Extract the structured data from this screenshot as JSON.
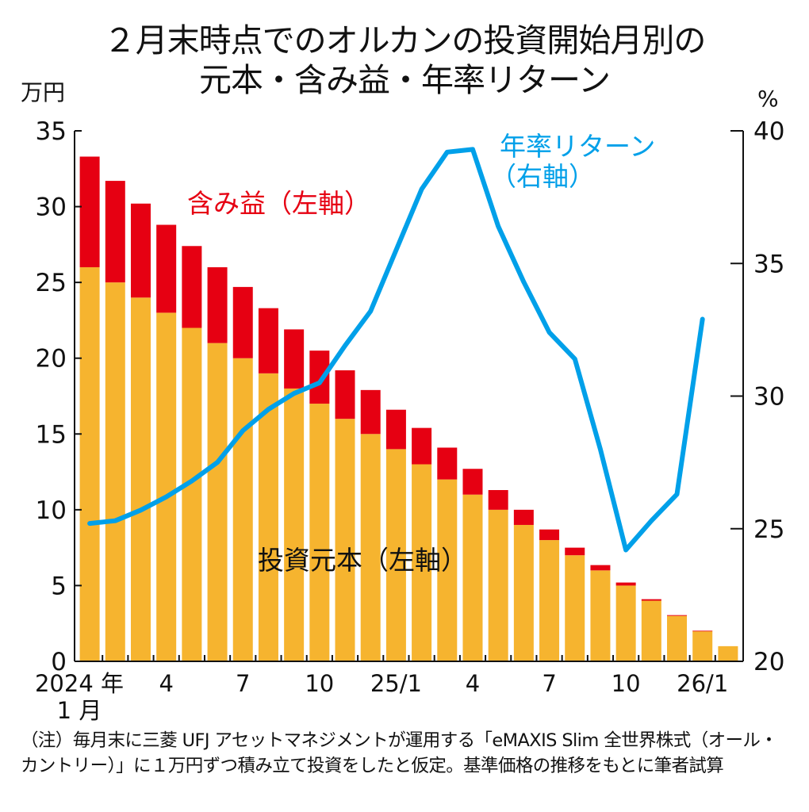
{
  "title": {
    "line1": "２月末時点でのオルカンの投資開始月別の",
    "line2": "元本・含み益・年率リターン"
  },
  "units": {
    "left": "万円",
    "right": "%"
  },
  "annotations": {
    "gain": "含み益（左軸）",
    "principal": "投資元本（左軸）",
    "return_line1": "年率リターン",
    "return_line2": "（右軸）"
  },
  "colors": {
    "principal": "#F6B42F",
    "gain": "#E60012",
    "return": "#00A0E9",
    "axis": "#111111"
  },
  "note": "（注）毎月末に三菱 UFJ アセットマネジメントが運用する「eMAXIS Slim 全世界株式（オール・カントリー）」に１万円ずつ積み立て投資をしたと仮定。基準価格の推移をもとに筆者試算",
  "chart_data": {
    "type": "bar",
    "title": "２月末時点でのオルカンの投資開始月別の元本・含み益・年率リターン",
    "stacked": true,
    "categories": [
      "2024/1",
      "2024/2",
      "2024/3",
      "2024/4",
      "2024/5",
      "2024/6",
      "2024/7",
      "2024/8",
      "2024/9",
      "2024/10",
      "2024/11",
      "2024/12",
      "2025/1",
      "2025/2",
      "2025/3",
      "2025/4",
      "2025/5",
      "2025/6",
      "2025/7",
      "2025/8",
      "2025/9",
      "2025/10",
      "2025/11",
      "2025/12",
      "2026/1",
      "2026/2"
    ],
    "x_tick_labels": [
      {
        "index": 0,
        "label": "2024 年",
        "sub": "1 月"
      },
      {
        "index": 3,
        "label": "4"
      },
      {
        "index": 6,
        "label": "7"
      },
      {
        "index": 9,
        "label": "10"
      },
      {
        "index": 12,
        "label": "25/1"
      },
      {
        "index": 15,
        "label": "4"
      },
      {
        "index": 18,
        "label": "7"
      },
      {
        "index": 21,
        "label": "10"
      },
      {
        "index": 24,
        "label": "26/1"
      }
    ],
    "series": [
      {
        "name": "投資元本（左軸）",
        "axis": "left",
        "type": "bar",
        "values": [
          26,
          25,
          24,
          23,
          22,
          21,
          20,
          19,
          18,
          17,
          16,
          15,
          14,
          13,
          12,
          11,
          10,
          9,
          8,
          7,
          6,
          5,
          4,
          3,
          2,
          1
        ]
      },
      {
        "name": "含み益（左軸）",
        "axis": "left",
        "type": "bar",
        "values": [
          7.3,
          6.7,
          6.2,
          5.8,
          5.4,
          5.0,
          4.7,
          4.3,
          3.9,
          3.5,
          3.2,
          2.9,
          2.6,
          2.4,
          2.1,
          1.7,
          1.3,
          1.0,
          0.7,
          0.5,
          0.35,
          0.2,
          0.1,
          0.05,
          0.02,
          0
        ]
      },
      {
        "name": "年率リターン（右軸）",
        "axis": "right",
        "type": "line",
        "values": [
          25.2,
          25.3,
          25.7,
          26.2,
          26.8,
          27.5,
          28.7,
          29.5,
          30.1,
          30.5,
          31.9,
          33.2,
          35.5,
          37.8,
          39.2,
          39.3,
          36.4,
          34.3,
          32.4,
          31.4,
          28.0,
          24.2,
          25.3,
          26.3,
          32.9,
          null
        ]
      }
    ],
    "y_left": {
      "label": "万円",
      "lim": [
        0,
        35
      ],
      "ticks": [
        0,
        5,
        10,
        15,
        20,
        25,
        30,
        35
      ]
    },
    "y_right": {
      "label": "%",
      "lim": [
        20,
        40
      ],
      "ticks": [
        20,
        25,
        30,
        35,
        40
      ]
    },
    "grid": false,
    "legend": "inline annotations"
  }
}
